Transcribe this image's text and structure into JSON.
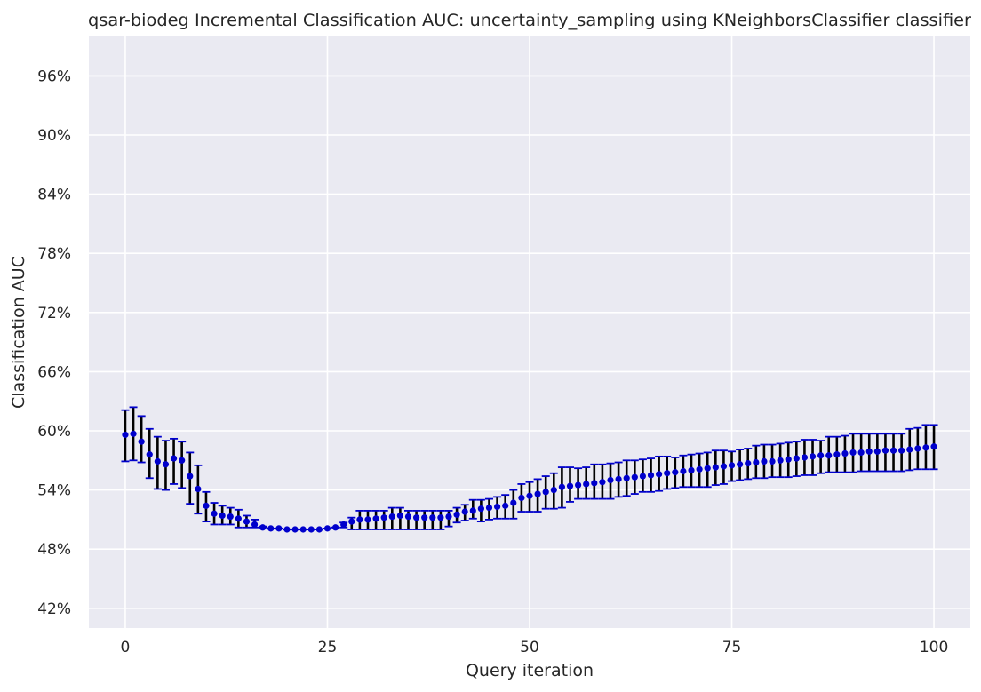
{
  "chart_data": {
    "type": "scatter",
    "title": "qsar-biodeg Incremental Classification AUC: uncertainty_sampling using KNeighborsClassifier classifier",
    "xlabel": "Query iteration",
    "ylabel": "Classification AUC",
    "xlim": [
      -4.5,
      104.5
    ],
    "ylim": [
      40.0,
      100.0
    ],
    "xticks": [
      0,
      25,
      50,
      75,
      100
    ],
    "yticks": [
      42,
      48,
      54,
      60,
      66,
      72,
      78,
      84,
      90,
      96
    ],
    "ytick_labels": [
      "42%",
      "48%",
      "54%",
      "60%",
      "66%",
      "72%",
      "78%",
      "84%",
      "90%",
      "96%"
    ],
    "grid": true,
    "colors": {
      "background": "#eaeaf2",
      "grid": "#ffffff",
      "point": "#0000cc",
      "errorbar": "#000000",
      "cap": "#0000cc",
      "text": "#262626"
    },
    "series": [
      {
        "x": [
          0,
          1,
          2,
          3,
          4,
          5,
          6,
          7,
          8,
          9,
          10,
          11,
          12,
          13,
          14,
          15,
          16,
          17,
          18,
          19,
          20,
          21,
          22,
          23,
          24,
          25,
          26,
          27,
          28,
          29,
          30,
          31,
          32,
          33,
          34,
          35,
          36,
          37,
          38,
          39,
          40,
          41,
          42,
          43,
          44,
          45,
          46,
          47,
          48,
          49,
          50,
          51,
          52,
          53,
          54,
          55,
          56,
          57,
          58,
          59,
          60,
          61,
          62,
          63,
          64,
          65,
          66,
          67,
          68,
          69,
          70,
          71,
          72,
          73,
          74,
          75,
          76,
          77,
          78,
          79,
          80,
          81,
          82,
          83,
          84,
          85,
          86,
          87,
          88,
          89,
          90,
          91,
          92,
          93,
          94,
          95,
          96,
          97,
          98,
          99,
          100
        ],
        "y": [
          59.6,
          59.7,
          58.9,
          57.6,
          56.9,
          56.6,
          57.2,
          57.0,
          55.4,
          54.1,
          52.4,
          51.6,
          51.4,
          51.3,
          51.1,
          50.8,
          50.5,
          50.2,
          50.1,
          50.1,
          50.0,
          50.0,
          50.0,
          50.0,
          50.0,
          50.1,
          50.2,
          50.5,
          50.8,
          51.0,
          51.0,
          51.1,
          51.2,
          51.3,
          51.4,
          51.3,
          51.2,
          51.2,
          51.2,
          51.2,
          51.3,
          51.5,
          51.8,
          51.9,
          52.1,
          52.2,
          52.3,
          52.4,
          52.7,
          53.2,
          53.4,
          53.6,
          53.8,
          54.0,
          54.3,
          54.4,
          54.5,
          54.6,
          54.7,
          54.8,
          55.0,
          55.1,
          55.2,
          55.3,
          55.4,
          55.5,
          55.6,
          55.7,
          55.8,
          55.9,
          56.0,
          56.1,
          56.2,
          56.3,
          56.4,
          56.5,
          56.6,
          56.7,
          56.8,
          56.9,
          56.9,
          57.0,
          57.1,
          57.2,
          57.3,
          57.4,
          57.5,
          57.5,
          57.6,
          57.7,
          57.8,
          57.8,
          57.9,
          57.9,
          58.0,
          58.0,
          58.0,
          58.1,
          58.2,
          58.3,
          58.4
        ],
        "err_low": [
          56.9,
          57.0,
          56.8,
          55.2,
          54.1,
          54.0,
          54.6,
          54.2,
          52.6,
          51.6,
          50.8,
          50.5,
          50.5,
          50.5,
          50.2,
          50.2,
          50.2,
          50.2,
          50.1,
          50.1,
          50.0,
          50.0,
          50.0,
          50.0,
          50.0,
          50.1,
          50.2,
          50.2,
          50.0,
          50.0,
          50.0,
          50.0,
          50.0,
          50.0,
          50.0,
          50.0,
          50.0,
          50.0,
          50.0,
          50.0,
          50.3,
          50.7,
          50.9,
          51.1,
          50.8,
          51.0,
          51.1,
          51.1,
          51.1,
          51.8,
          51.8,
          51.8,
          52.1,
          52.1,
          52.2,
          52.8,
          53.1,
          53.1,
          53.1,
          53.1,
          53.1,
          53.3,
          53.4,
          53.6,
          53.8,
          53.8,
          53.9,
          54.1,
          54.2,
          54.3,
          54.3,
          54.3,
          54.3,
          54.5,
          54.6,
          54.9,
          55.0,
          55.1,
          55.2,
          55.2,
          55.3,
          55.3,
          55.3,
          55.4,
          55.5,
          55.5,
          55.7,
          55.8,
          55.8,
          55.8,
          55.8,
          55.9,
          55.9,
          55.9,
          55.9,
          55.9,
          55.9,
          56.0,
          56.1,
          56.1,
          56.1
        ],
        "err_high": [
          62.1,
          62.4,
          61.5,
          60.2,
          59.4,
          59.0,
          59.2,
          58.9,
          57.8,
          56.5,
          53.8,
          52.7,
          52.4,
          52.2,
          52.0,
          51.4,
          51.0,
          50.3,
          50.1,
          50.1,
          50.0,
          50.0,
          50.0,
          50.0,
          50.0,
          50.1,
          50.2,
          50.7,
          51.2,
          51.9,
          51.9,
          51.9,
          51.9,
          52.2,
          52.2,
          51.9,
          51.9,
          51.9,
          51.9,
          51.9,
          51.9,
          52.2,
          52.5,
          53.0,
          53.0,
          53.1,
          53.3,
          53.5,
          54.0,
          54.6,
          54.8,
          55.1,
          55.4,
          55.7,
          56.3,
          56.3,
          56.2,
          56.3,
          56.6,
          56.6,
          56.7,
          56.8,
          57.0,
          57.0,
          57.1,
          57.2,
          57.4,
          57.4,
          57.3,
          57.5,
          57.6,
          57.7,
          57.8,
          58.0,
          58.0,
          57.9,
          58.1,
          58.2,
          58.5,
          58.6,
          58.6,
          58.7,
          58.8,
          58.9,
          59.1,
          59.1,
          59.0,
          59.4,
          59.4,
          59.5,
          59.7,
          59.7,
          59.7,
          59.7,
          59.7,
          59.7,
          59.7,
          60.2,
          60.3,
          60.6,
          60.6
        ]
      }
    ]
  }
}
